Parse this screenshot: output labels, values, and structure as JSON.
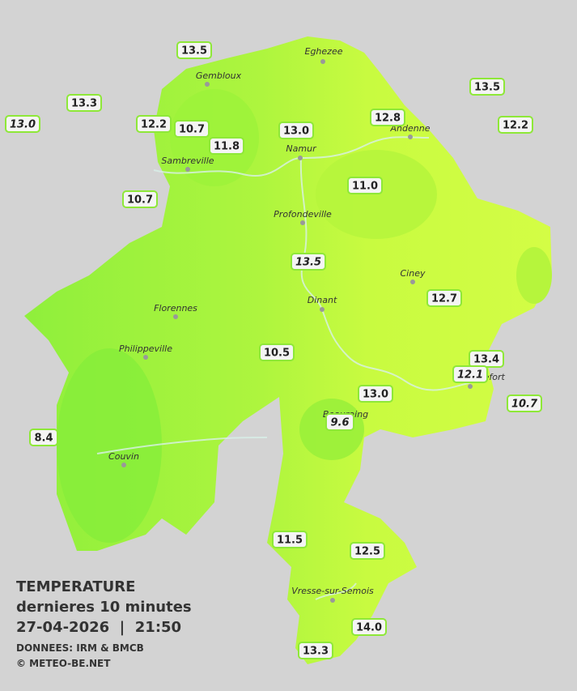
{
  "title": {
    "line1": "TEMPERATURE",
    "line2": "dernieres 10 minutes",
    "line3": "27-04-2026  |  21:50",
    "source": "DONNEES: IRM & BMCB",
    "credit": "© METEO-BE.NET"
  },
  "cities": [
    "Eghezee",
    "Gembloux",
    "Sambreville",
    "Namur",
    "Andenne",
    "Profondeville",
    "Ciney",
    "Dinant",
    "Florennes",
    "Philippeville",
    "Couvin",
    "Beauraing",
    "Rochefort",
    "Vresse-sur-Semois"
  ],
  "stations": [
    {
      "value": "13.5",
      "italic": false
    },
    {
      "value": "13.3",
      "italic": false
    },
    {
      "value": "13.0",
      "italic": true
    },
    {
      "value": "12.2",
      "italic": false
    },
    {
      "value": "10.7",
      "italic": false
    },
    {
      "value": "11.8",
      "italic": false
    },
    {
      "value": "13.0",
      "italic": false
    },
    {
      "value": "12.8",
      "italic": false
    },
    {
      "value": "13.5",
      "italic": false
    },
    {
      "value": "12.2",
      "italic": false
    },
    {
      "value": "10.7",
      "italic": false
    },
    {
      "value": "11.0",
      "italic": false
    },
    {
      "value": "13.5",
      "italic": true
    },
    {
      "value": "12.7",
      "italic": false
    },
    {
      "value": "10.5",
      "italic": false
    },
    {
      "value": "13.4",
      "italic": false
    },
    {
      "value": "12.1",
      "italic": true
    },
    {
      "value": "13.0",
      "italic": false
    },
    {
      "value": "10.7",
      "italic": true
    },
    {
      "value": "8.4",
      "italic": false
    },
    {
      "value": "9.6",
      "italic": true
    },
    {
      "value": "11.5",
      "italic": false
    },
    {
      "value": "12.5",
      "italic": false
    },
    {
      "value": "14.0",
      "italic": false
    },
    {
      "value": "13.3",
      "italic": false
    }
  ]
}
